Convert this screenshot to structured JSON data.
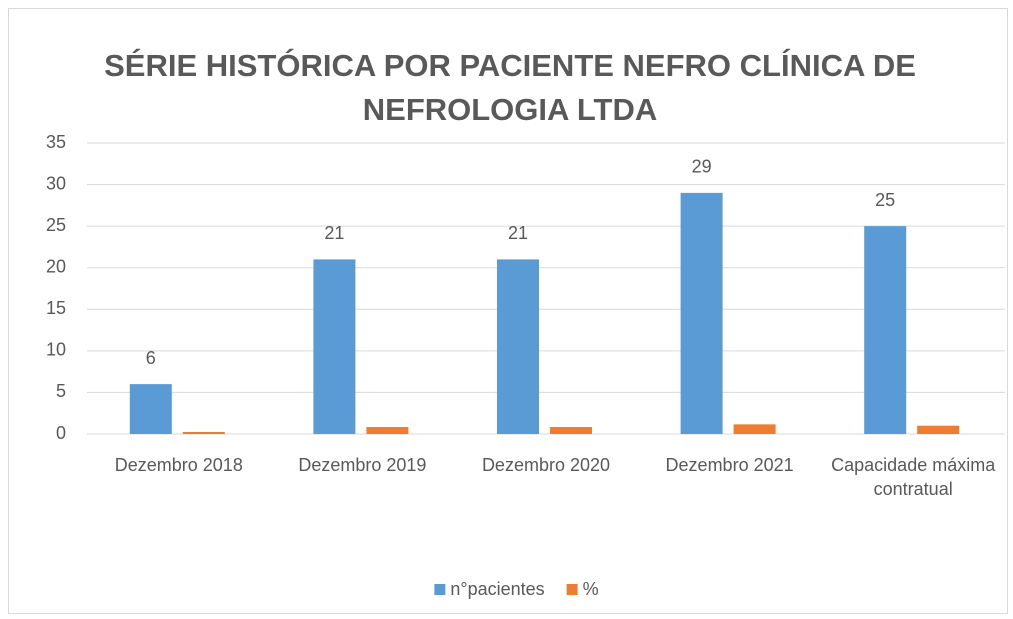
{
  "chart_data": {
    "type": "bar",
    "title": "SÉRIE HISTÓRICA POR PACIENTE NEFRO CLÍNICA DE NEFROLOGIA LTDA",
    "categories": [
      "Dezembro 2018",
      "Dezembro 2019",
      "Dezembro 2020",
      "Dezembro 2021",
      "Capacidade máxima contratual"
    ],
    "series": [
      {
        "name": "n°pacientes",
        "color": "#5b9bd5",
        "values": [
          6,
          21,
          21,
          29,
          25
        ],
        "data_labels": true
      },
      {
        "name": "%",
        "color": "#ed7d31",
        "values": [
          0.24,
          0.84,
          0.84,
          1.16,
          1
        ]
      }
    ],
    "ylim": [
      0,
      35
    ],
    "yticks": [
      0,
      5,
      10,
      15,
      20,
      25,
      30,
      35
    ],
    "grid": true,
    "legend": "bottom"
  }
}
